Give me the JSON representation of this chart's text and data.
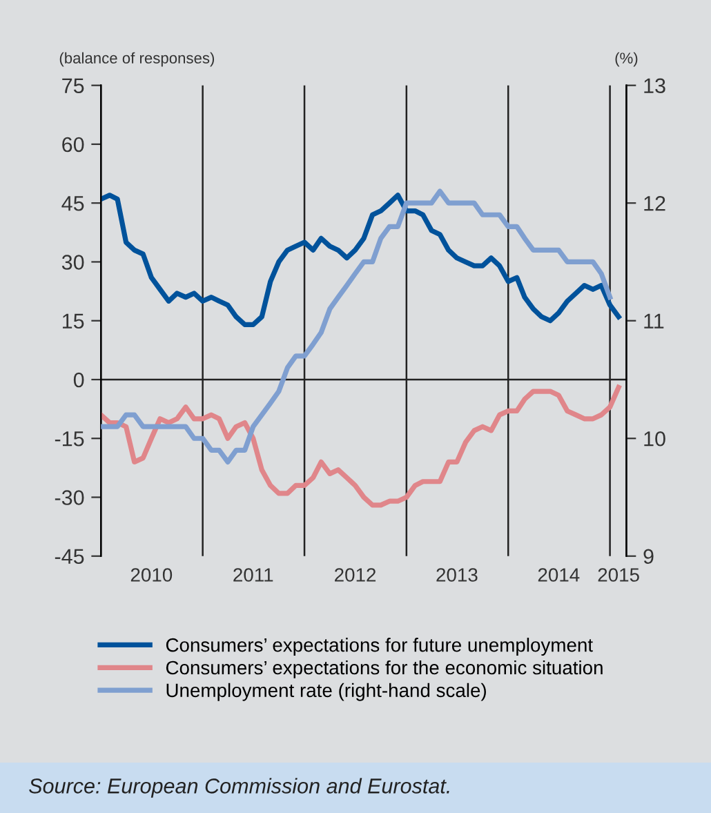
{
  "chart_data": {
    "type": "line",
    "ylabel": "(balance of responses)",
    "y2label": "(%)",
    "x": [
      "2010-01",
      "2010-02",
      "2010-03",
      "2010-04",
      "2010-05",
      "2010-06",
      "2010-07",
      "2010-08",
      "2010-09",
      "2010-10",
      "2010-11",
      "2010-12",
      "2011-01",
      "2011-02",
      "2011-03",
      "2011-04",
      "2011-05",
      "2011-06",
      "2011-07",
      "2011-08",
      "2011-09",
      "2011-10",
      "2011-11",
      "2011-12",
      "2012-01",
      "2012-02",
      "2012-03",
      "2012-04",
      "2012-05",
      "2012-06",
      "2012-07",
      "2012-08",
      "2012-09",
      "2012-10",
      "2012-11",
      "2012-12",
      "2013-01",
      "2013-02",
      "2013-03",
      "2013-04",
      "2013-05",
      "2013-06",
      "2013-07",
      "2013-08",
      "2013-09",
      "2013-10",
      "2013-11",
      "2013-12",
      "2014-01",
      "2014-02",
      "2014-03",
      "2014-04",
      "2014-05",
      "2014-06",
      "2014-07",
      "2014-08",
      "2014-09",
      "2014-10",
      "2014-11",
      "2014-12",
      "2015-01",
      "2015-02"
    ],
    "series": [
      {
        "name": "Consumers’ expectations for future unemployment",
        "color": "#00529b",
        "values": [
          46,
          47,
          46,
          35,
          33,
          32,
          26,
          23,
          20,
          22,
          21,
          22,
          20,
          21,
          20,
          19,
          16,
          14,
          14,
          16,
          25,
          30,
          33,
          34,
          35,
          33,
          36,
          34,
          33,
          31,
          33,
          36,
          42,
          43,
          45,
          47,
          43,
          43,
          42,
          38,
          37,
          33,
          31,
          30,
          29,
          29,
          31,
          29,
          25,
          26,
          21,
          18,
          16,
          15,
          17,
          20,
          22,
          24,
          23,
          24,
          19,
          16
        ]
      },
      {
        "name": "Consumers’ expectations for the economic situation",
        "color": "#e0868a",
        "values": [
          -9,
          -11,
          -11,
          -12,
          -21,
          -20,
          -15,
          -10,
          -11,
          -10,
          -7,
          -10,
          -10,
          -9,
          -10,
          -15,
          -12,
          -11,
          -15,
          -23,
          -27,
          -29,
          -29,
          -27,
          -27,
          -25,
          -21,
          -24,
          -23,
          -25,
          -27,
          -30,
          -32,
          -32,
          -31,
          -31,
          -30,
          -27,
          -26,
          -26,
          -26,
          -21,
          -21,
          -16,
          -13,
          -12,
          -13,
          -9,
          -8,
          -8,
          -5,
          -3,
          -3,
          -3,
          -4,
          -8,
          -9,
          -10,
          -10,
          -9,
          -7,
          -2
        ]
      },
      {
        "name": "Unemployment rate (right-hand scale)",
        "color": "#7f9fd0",
        "axis": "y2",
        "x": [
          "2010-01",
          "2010-02",
          "2010-03",
          "2010-04",
          "2010-05",
          "2010-06",
          "2010-07",
          "2010-08",
          "2010-09",
          "2010-10",
          "2010-11",
          "2010-12",
          "2011-01",
          "2011-02",
          "2011-03",
          "2011-04",
          "2011-05",
          "2011-06",
          "2011-07",
          "2011-08",
          "2011-09",
          "2011-10",
          "2011-11",
          "2011-12",
          "2012-01",
          "2012-02",
          "2012-03",
          "2012-04",
          "2012-05",
          "2012-06",
          "2012-07",
          "2012-08",
          "2012-09",
          "2012-10",
          "2012-11",
          "2012-12",
          "2013-01",
          "2013-02",
          "2013-03",
          "2013-04",
          "2013-05",
          "2013-06",
          "2013-07",
          "2013-08",
          "2013-09",
          "2013-10",
          "2013-11",
          "2013-12",
          "2014-01",
          "2014-02",
          "2014-03",
          "2014-04",
          "2014-05",
          "2014-06",
          "2014-07",
          "2014-08",
          "2014-09",
          "2014-10",
          "2014-11",
          "2014-12",
          "2015-01"
        ],
        "values": [
          10.1,
          10.1,
          10.1,
          10.2,
          10.2,
          10.1,
          10.1,
          10.1,
          10.1,
          10.1,
          10.1,
          10.0,
          10.0,
          9.9,
          9.9,
          9.8,
          9.9,
          9.9,
          10.1,
          10.2,
          10.3,
          10.4,
          10.6,
          10.7,
          10.7,
          10.8,
          10.9,
          11.1,
          11.2,
          11.3,
          11.4,
          11.5,
          11.5,
          11.7,
          11.8,
          11.8,
          12.0,
          12.0,
          12.0,
          12.0,
          12.1,
          12.0,
          12.0,
          12.0,
          12.0,
          11.9,
          11.9,
          11.9,
          11.8,
          11.8,
          11.7,
          11.6,
          11.6,
          11.6,
          11.6,
          11.5,
          11.5,
          11.5,
          11.5,
          11.4,
          11.2
        ]
      }
    ],
    "xlim": [
      "2010-01-01",
      "2015-03-01"
    ],
    "xticks": [
      {
        "value": "2010-07-01",
        "label": "2010"
      },
      {
        "value": "2011-07-01",
        "label": "2011"
      },
      {
        "value": "2012-07-01",
        "label": "2012"
      },
      {
        "value": "2013-07-01",
        "label": "2013"
      },
      {
        "value": "2014-07-01",
        "label": "2014"
      },
      {
        "value": "2015-02-01",
        "label": "2015"
      }
    ],
    "ylim": [
      -45,
      75
    ],
    "yticks": [
      -45,
      -30,
      -15,
      0,
      15,
      30,
      45,
      60,
      75
    ],
    "y2lim": [
      9,
      13
    ],
    "y2ticks": [
      9,
      10,
      11,
      12,
      13
    ],
    "ref_lines": [
      {
        "axis": "y",
        "value": 0
      },
      {
        "axis": "x",
        "value": "2011-01-01"
      },
      {
        "axis": "x",
        "value": "2012-01-01"
      },
      {
        "axis": "x",
        "value": "2013-01-01"
      },
      {
        "axis": "x",
        "value": "2014-01-01"
      },
      {
        "axis": "x",
        "value": "2015-01-01"
      }
    ],
    "grid": false,
    "legend": "bottom",
    "marker": "none",
    "line_style": "solid",
    "annotations": [
      "Source: European Commission and Eurostat."
    ]
  }
}
